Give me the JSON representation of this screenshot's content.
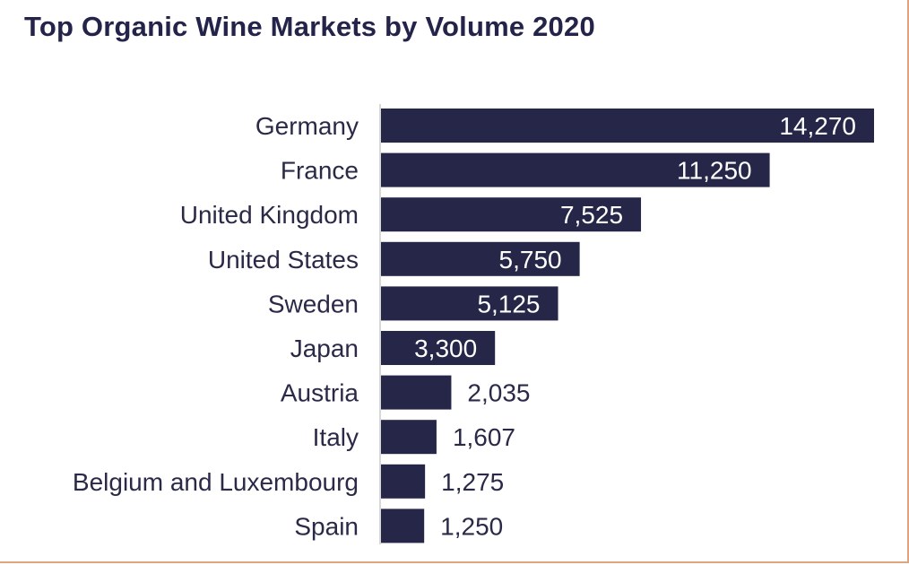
{
  "chart_data": {
    "type": "bar",
    "orientation": "horizontal",
    "title": "Top Organic Wine Markets by Volume 2020",
    "categories": [
      "Germany",
      "France",
      "United Kingdom",
      "United States",
      "Sweden",
      "Japan",
      "Austria",
      "Italy",
      "Belgium and Luxembourg",
      "Spain"
    ],
    "values": [
      14270,
      11250,
      7525,
      5750,
      5125,
      3300,
      2035,
      1607,
      1275,
      1250
    ],
    "value_labels": [
      "14,270",
      "11,250",
      "7,525",
      "5,750",
      "5,125",
      "3,300",
      "2,035",
      "1,607",
      "1,275",
      "1,250"
    ],
    "xlim": [
      0,
      14270
    ],
    "grid": false,
    "legend": "none",
    "colors": {
      "bar": "#262649",
      "label_inside": "#ffffff",
      "label_outside": "#2a2a48",
      "axis": "#cccccc",
      "border": "#e0a47e"
    }
  }
}
